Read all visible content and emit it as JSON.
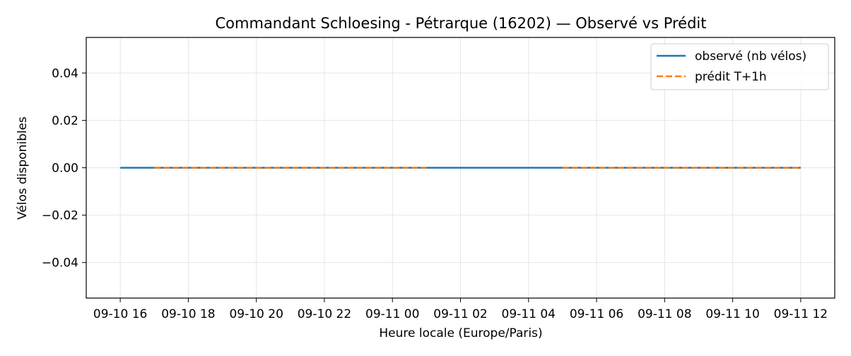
{
  "chart_data": {
    "type": "line",
    "title": "Commandant Schloesing - Pétrarque (16202) — Observé vs Prédit",
    "xlabel": "Heure locale (Europe/Paris)",
    "ylabel": "Vélos disponibles",
    "x_tick_labels": [
      "09-10 16",
      "09-10 18",
      "09-10 20",
      "09-10 22",
      "09-11 00",
      "09-11 02",
      "09-11 04",
      "09-11 06",
      "09-11 08",
      "09-11 10",
      "09-11 12"
    ],
    "x_ticks_hours": [
      16,
      18,
      20,
      22,
      24,
      26,
      28,
      30,
      32,
      34,
      36
    ],
    "x_range_hours": [
      15.0,
      37.0
    ],
    "ylim": [
      -0.055,
      0.055
    ],
    "y_ticks": [
      -0.04,
      -0.02,
      0.0,
      0.02,
      0.04
    ],
    "y_tick_labels": [
      "−0.04",
      "−0.02",
      "0.00",
      "0.02",
      "0.04"
    ],
    "grid": true,
    "legend_position": "top-right",
    "series": [
      {
        "name": "observé (nb vélos)",
        "color": "#1f77b4",
        "style": "solid",
        "segments": [
          {
            "x": [
              16.0,
              36.0
            ],
            "y": [
              0,
              0
            ]
          }
        ]
      },
      {
        "name": "prédit T+1h",
        "color": "#ff7f0e",
        "style": "dashed",
        "segments": [
          {
            "x": [
              17.0,
              25.0
            ],
            "y": [
              0,
              0
            ]
          },
          {
            "x": [
              29.0,
              36.0
            ],
            "y": [
              0,
              0
            ]
          }
        ]
      }
    ]
  }
}
